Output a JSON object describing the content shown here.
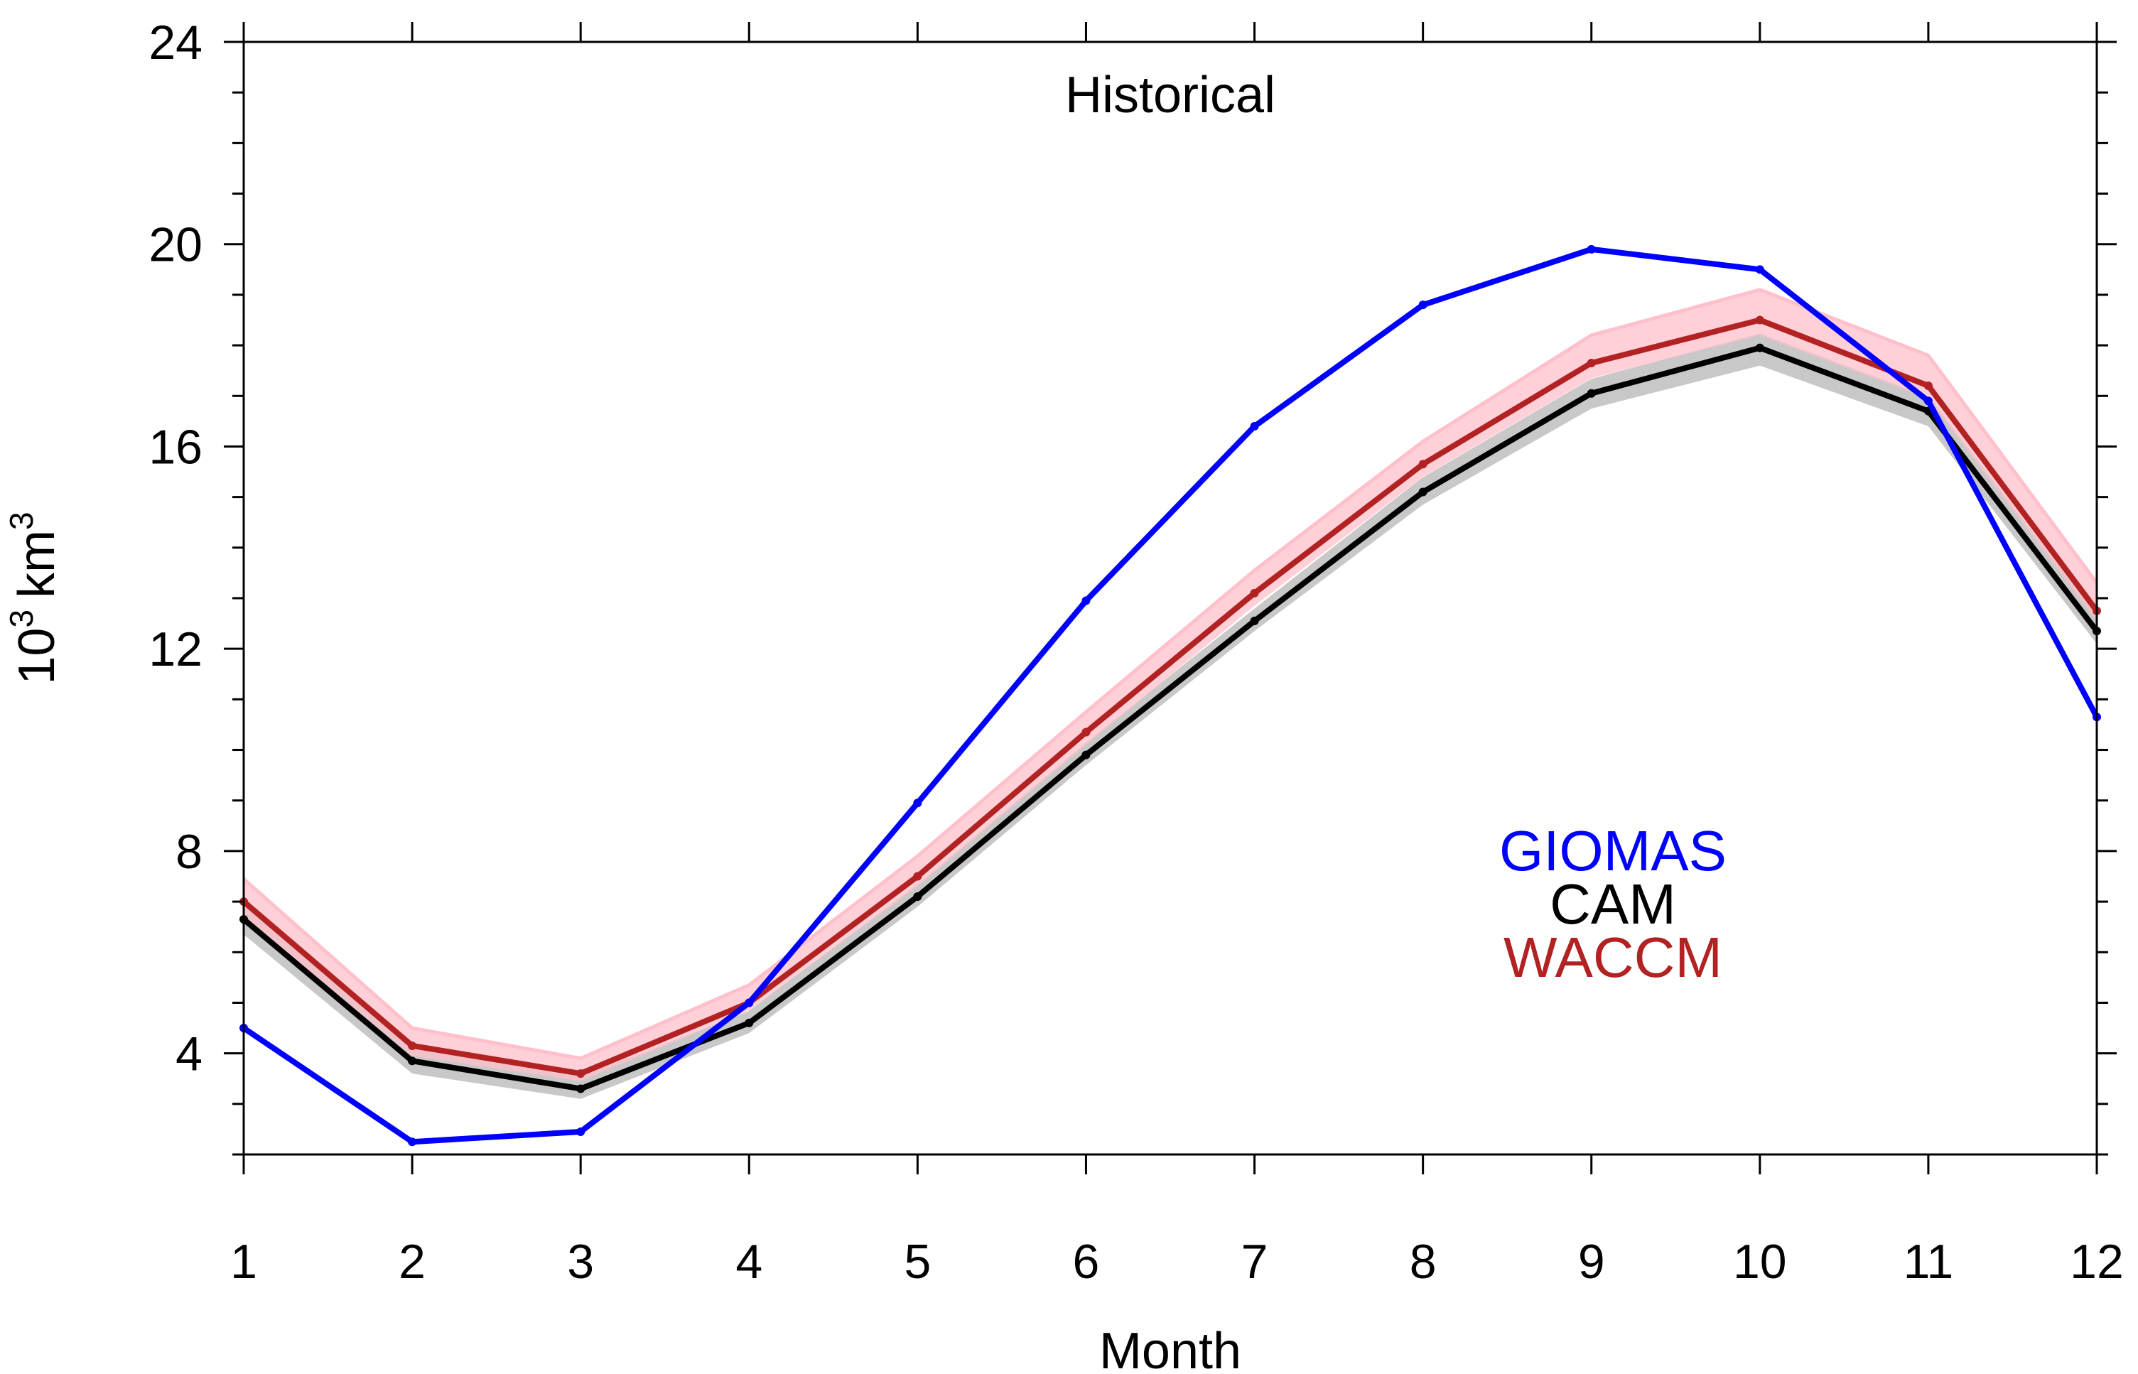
{
  "colors": {
    "giomas": "#0000ff",
    "cam": "#000000",
    "waccm": "#b22222",
    "cam_spread": "#c8c8c8",
    "waccm_spread": "#ffc0cb"
  },
  "chart_data": {
    "type": "line",
    "title": "Historical",
    "xlabel": "Month",
    "ylabel_base": "10",
    "ylabel_exp": "3",
    "ylabel_unit": "km",
    "ylabel_unit_exp": "3",
    "x": [
      1,
      2,
      3,
      4,
      5,
      6,
      7,
      8,
      9,
      10,
      11,
      12
    ],
    "xlim": [
      1,
      12
    ],
    "ylim": [
      2,
      24
    ],
    "y_ticks": [
      4,
      8,
      12,
      16,
      20,
      24
    ],
    "y_minor_step": 1,
    "grid": false,
    "legend_position": "inside-right",
    "series": [
      {
        "name": "GIOMAS",
        "color": "#0000ff",
        "values": [
          4.5,
          2.25,
          2.45,
          5.0,
          8.95,
          12.95,
          16.4,
          18.8,
          19.9,
          19.5,
          16.9,
          10.65
        ]
      },
      {
        "name": "CAM",
        "color": "#000000",
        "values": [
          6.65,
          3.85,
          3.3,
          4.6,
          7.1,
          9.9,
          12.55,
          15.1,
          17.05,
          17.95,
          16.7,
          12.35
        ],
        "spread": {
          "lower": [
            6.35,
            3.6,
            3.1,
            4.4,
            6.9,
            9.7,
            12.35,
            14.85,
            16.75,
            17.6,
            16.4,
            12.1
          ],
          "upper": [
            6.95,
            4.05,
            3.5,
            4.8,
            7.3,
            10.1,
            12.75,
            15.35,
            17.3,
            18.2,
            16.95,
            12.6
          ]
        }
      },
      {
        "name": "WACCM",
        "color": "#b22222",
        "values": [
          7.0,
          4.15,
          3.6,
          5.0,
          7.5,
          10.35,
          13.1,
          15.65,
          17.65,
          18.5,
          17.2,
          12.75
        ],
        "spread": {
          "lower": [
            6.7,
            3.95,
            3.45,
            4.85,
            7.3,
            10.1,
            12.85,
            15.4,
            17.35,
            18.2,
            16.95,
            12.55
          ],
          "upper": [
            7.45,
            4.5,
            3.9,
            5.35,
            7.9,
            10.75,
            13.55,
            16.1,
            18.2,
            19.1,
            17.8,
            13.3
          ]
        }
      }
    ]
  }
}
